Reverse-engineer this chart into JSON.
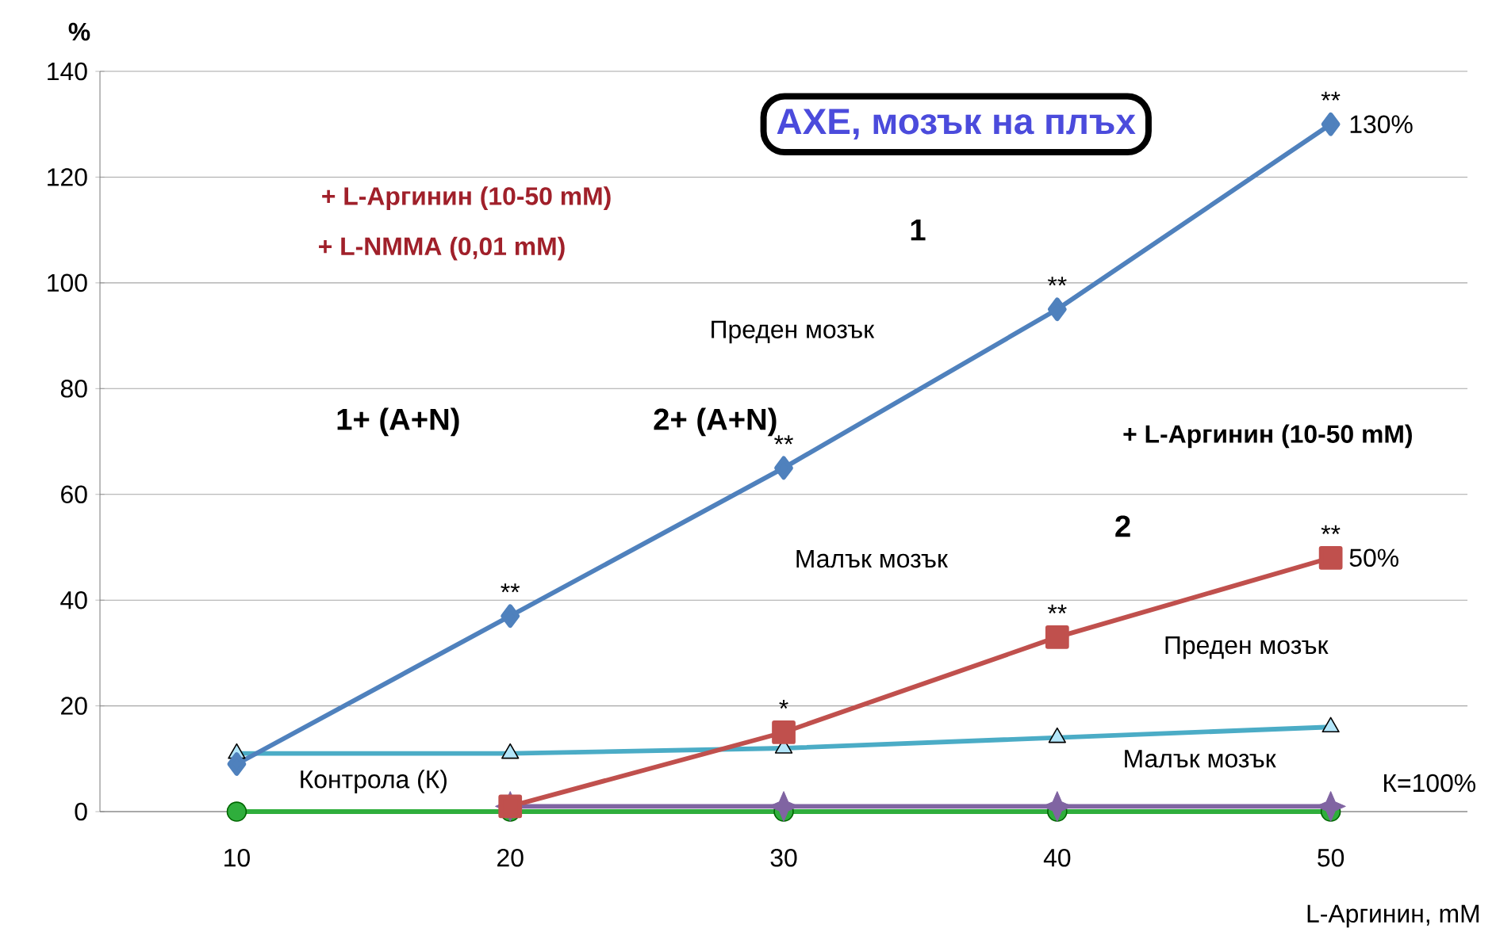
{
  "chart_data": {
    "type": "line",
    "title": "АХЕ, мозък на плъх",
    "xlabel": "L-Аргинин, mM",
    "ylabel": "%",
    "x": [
      10,
      20,
      30,
      40,
      50
    ],
    "xlim": [
      5,
      55
    ],
    "xticks": [
      10,
      20,
      30,
      40,
      50
    ],
    "ylim": [
      0,
      140
    ],
    "yticks": [
      0,
      20,
      40,
      60,
      80,
      100,
      120,
      140
    ],
    "grid": "y",
    "series": [
      {
        "color": "#2fae3c",
        "marker": "circle",
        "values": [
          0,
          0,
          0,
          0,
          0
        ]
      },
      {
        "color": "#8064a2",
        "marker": "star",
        "values": [
          null,
          1,
          1,
          1,
          1
        ]
      },
      {
        "color": "#4bacc6",
        "marker": "triangle",
        "values": [
          11,
          11,
          12,
          14,
          16
        ]
      },
      {
        "color": "#c0504d",
        "marker": "square",
        "values": [
          null,
          1,
          15,
          33,
          48
        ]
      },
      {
        "color": "#4f81bd",
        "marker": "diamond",
        "values": [
          9,
          37,
          65,
          95,
          130
        ]
      }
    ],
    "annotations": [
      "+ L-Аргинин (10-50 mM)",
      "+ L-NMMA (0,01 mM)",
      "1+ (A+N)",
      "2+ (A+N)",
      "1",
      "Преден мозък",
      "+ L-Аргинин (10-50 mM)",
      "Малък мозък",
      "2",
      "Преден мозък",
      "Малък мозък",
      "Контрола (К)",
      "К=100%",
      {
        "text": "130%",
        "x": 50,
        "y": 130
      },
      {
        "text": "50%",
        "x": 50,
        "y": 48
      },
      {
        "text": "**",
        "x": 20,
        "y": 37
      },
      {
        "text": "**",
        "x": 30,
        "y": 65
      },
      {
        "text": "**",
        "x": 40,
        "y": 95
      },
      {
        "text": "**",
        "x": 50,
        "y": 130
      },
      {
        "text": "*",
        "x": 30,
        "y": 15
      },
      {
        "text": "**",
        "x": 40,
        "y": 33
      },
      {
        "text": "**",
        "x": 50,
        "y": 48
      }
    ]
  }
}
